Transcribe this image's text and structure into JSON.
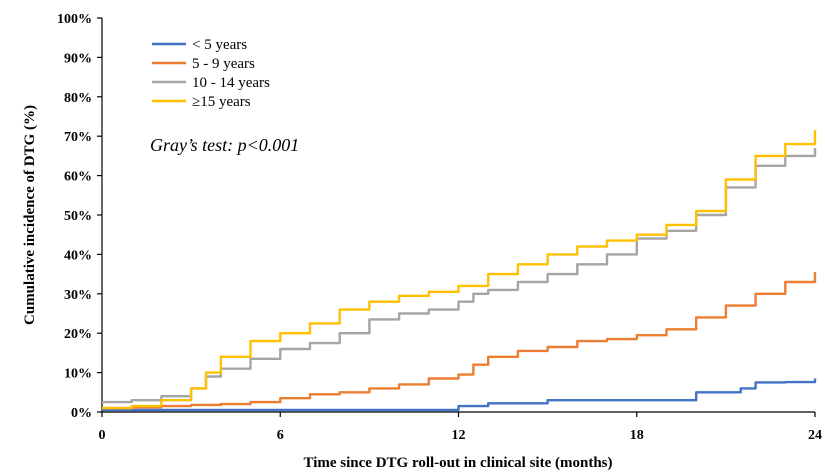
{
  "chart_data": {
    "type": "line",
    "xlabel": "Time since DTG roll-out in clinical site (months)",
    "ylabel": "Cumulative incidence of DTG (%)",
    "xlim": [
      0,
      24
    ],
    "ylim": [
      0,
      100
    ],
    "x_ticks": [
      "0",
      "6",
      "12",
      "18",
      "24"
    ],
    "y_ticks": [
      "0%",
      "10%",
      "20%",
      "30%",
      "40%",
      "50%",
      "60%",
      "70%",
      "80%",
      "90%",
      "100%"
    ],
    "grid": false,
    "legend_position": "top-left",
    "annotation": "Gray’s test: p<0.001",
    "series": [
      {
        "name": "< 5 years",
        "color": "#4472C4",
        "x": [
          0,
          3,
          6,
          9,
          11.5,
          12,
          13,
          15,
          18,
          19.5,
          20,
          21,
          21.5,
          22,
          23,
          23.9,
          24
        ],
        "y": [
          0.5,
          0.5,
          0.5,
          0.5,
          0.5,
          1.5,
          2.2,
          3,
          3,
          3,
          5,
          5,
          6,
          7.5,
          7.6,
          7.6,
          8.5
        ]
      },
      {
        "name": "5 - 9 years",
        "color": "#ED7D31",
        "x": [
          0,
          1,
          2,
          3,
          4,
          5,
          6,
          7,
          8,
          9,
          10,
          11,
          12,
          12.5,
          13,
          14,
          15,
          16,
          17,
          18,
          19,
          20,
          21,
          22,
          23,
          24
        ],
        "y": [
          1,
          1.2,
          1.5,
          1.8,
          2,
          2.5,
          3.5,
          4.5,
          5,
          6,
          7,
          8.5,
          9.5,
          12,
          14,
          15.5,
          16.5,
          18,
          18.5,
          19.5,
          21,
          24,
          27,
          30,
          33,
          35.5
        ]
      },
      {
        "name": "10 - 14 years",
        "color": "#A5A5A5",
        "x": [
          0,
          1,
          2,
          3,
          3.5,
          4,
          5,
          6,
          7,
          8,
          9,
          10,
          11,
          12,
          12.5,
          13,
          14,
          15,
          16,
          17,
          18,
          19,
          20,
          21,
          22,
          23,
          24
        ],
        "y": [
          2.5,
          3,
          4,
          6,
          9,
          11,
          13.5,
          16,
          17.5,
          20,
          23.5,
          25,
          26,
          28,
          30,
          31,
          33,
          35,
          37.5,
          40,
          44,
          46,
          50,
          57,
          62.5,
          65,
          67
        ]
      },
      {
        "name": "≥15 years",
        "color": "#FFC000",
        "x": [
          0,
          1,
          2,
          3,
          3.5,
          4,
          5,
          6,
          7,
          8,
          9,
          10,
          11,
          12,
          13,
          14,
          15,
          16,
          17,
          18,
          19,
          20,
          21,
          22,
          23,
          24
        ],
        "y": [
          1,
          1.5,
          3,
          6,
          10,
          14,
          18,
          20,
          22.5,
          26,
          28,
          29.5,
          30.5,
          32,
          35,
          37.5,
          40,
          42,
          43.5,
          45,
          47.5,
          51,
          59,
          65,
          68,
          71.5
        ]
      }
    ]
  }
}
